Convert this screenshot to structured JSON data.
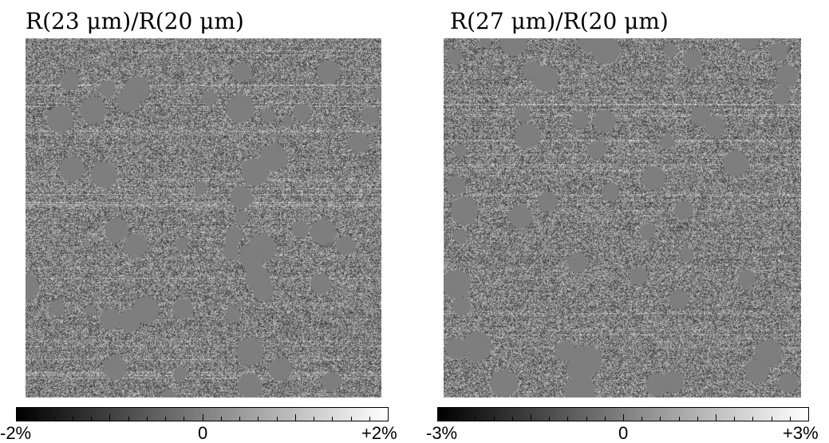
{
  "panels": [
    {
      "title": "R(23 μm)/R(20 μm)",
      "colorbar": {
        "min_label": "-2%",
        "mid_label": "0",
        "max_label": "+2%",
        "colors": [
          "#000000",
          "#808080",
          "#ffffff"
        ]
      }
    },
    {
      "title": "R(27 μm)/R(20 μm)",
      "colorbar": {
        "min_label": "-3%",
        "mid_label": "0",
        "max_label": "+3%",
        "colors": [
          "#000000",
          "#808080",
          "#ffffff"
        ]
      }
    }
  ]
}
